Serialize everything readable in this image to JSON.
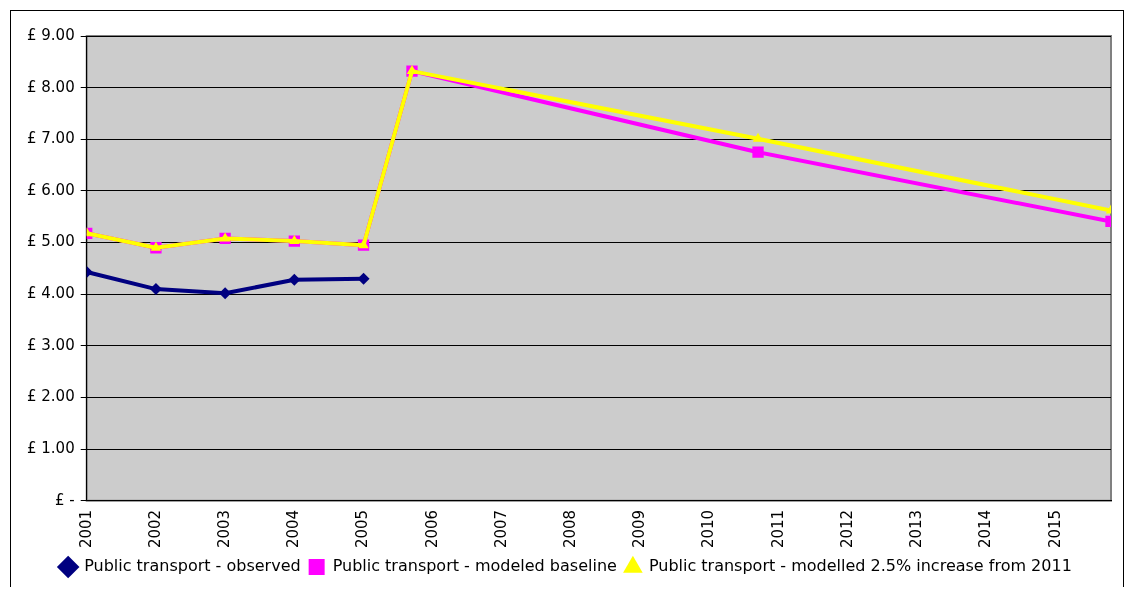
{
  "chart_data": {
    "type": "line",
    "xlim": [
      2001,
      2015.8
    ],
    "xticks": [
      2001,
      2002,
      2003,
      2004,
      2005,
      2006,
      2007,
      2008,
      2009,
      2010,
      2011,
      2012,
      2013,
      2014,
      2015
    ],
    "ylim": [
      0,
      9
    ],
    "yticks": [
      {
        "value": 0,
        "label": "£ -"
      },
      {
        "value": 1,
        "label": "£ 1.00"
      },
      {
        "value": 2,
        "label": "£ 2.00"
      },
      {
        "value": 3,
        "label": "£ 3.00"
      },
      {
        "value": 4,
        "label": "£ 4.00"
      },
      {
        "value": 5,
        "label": "£ 5.00"
      },
      {
        "value": 6,
        "label": "£ 6.00"
      },
      {
        "value": 7,
        "label": "£ 7.00"
      },
      {
        "value": 8,
        "label": "£ 8.00"
      },
      {
        "value": 9,
        "label": "£ 9.00"
      }
    ],
    "grid": "y",
    "legend": "bottom",
    "line_style": "solid",
    "series": [
      {
        "name": "Public transport - observed",
        "color": "#000080",
        "marker": "diamond",
        "x": [
          2001,
          2002,
          2003,
          2004,
          2005
        ],
        "values": [
          4.43,
          4.1,
          4.02,
          4.28,
          4.3
        ]
      },
      {
        "name": "Public transport - modeled baseline",
        "color": "#ff00ff",
        "marker": "square",
        "x": [
          2001,
          2002,
          2003,
          2004,
          2005,
          2005.7,
          2010.7,
          2015.8
        ],
        "values": [
          5.18,
          4.9,
          5.08,
          5.03,
          4.95,
          8.32,
          6.75,
          5.41
        ]
      },
      {
        "name": "Public transport - modelled 2.5% increase from 2011",
        "color": "#ffff00",
        "marker": "triangle",
        "x": [
          2001,
          2002,
          2003,
          2004,
          2005,
          2005.7,
          2010.7,
          2015.8
        ],
        "values": [
          5.18,
          4.9,
          5.08,
          5.03,
          4.95,
          8.32,
          7.01,
          5.62
        ]
      }
    ]
  }
}
